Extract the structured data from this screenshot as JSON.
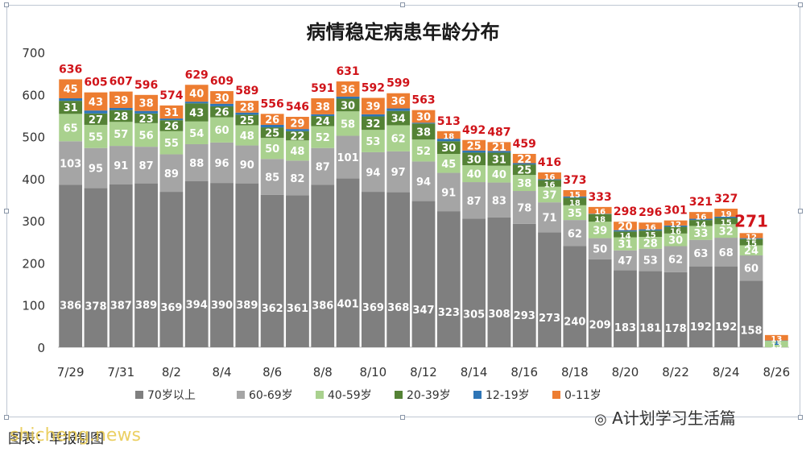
{
  "chart_data": {
    "type": "bar",
    "title": "病情稳定病患年龄分布",
    "y_ticks": [
      0,
      100,
      200,
      300,
      400,
      500,
      600,
      700
    ],
    "ylim": [
      0,
      700
    ],
    "x_tick_labels": [
      "7/29",
      "7/31",
      "8/2",
      "8/4",
      "8/6",
      "8/8",
      "8/10",
      "8/12",
      "8/14",
      "8/16",
      "8/18",
      "8/20",
      "8/22",
      "8/24",
      "8/26"
    ],
    "categories": [
      "7/29",
      "7/30",
      "7/31",
      "8/1",
      "8/2",
      "8/3",
      "8/4",
      "8/5",
      "8/6",
      "8/7",
      "8/8",
      "8/9",
      "8/10",
      "8/11",
      "8/12",
      "8/13",
      "8/14",
      "8/15",
      "8/16",
      "8/17",
      "8/18",
      "8/19",
      "8/20",
      "8/21",
      "8/22",
      "8/23",
      "8/24",
      "8/25",
      "8/26"
    ],
    "totals": [
      636,
      605,
      607,
      596,
      574,
      629,
      609,
      589,
      556,
      546,
      591,
      631,
      592,
      599,
      563,
      513,
      492,
      487,
      459,
      416,
      373,
      333,
      298,
      296,
      301,
      321,
      327,
      271,
      null
    ],
    "series": [
      {
        "name": "70岁以上",
        "color": "#7f7f7f",
        "values": [
          386,
          378,
          387,
          389,
          369,
          394,
          390,
          389,
          362,
          361,
          386,
          401,
          369,
          368,
          347,
          323,
          305,
          308,
          293,
          273,
          240,
          209,
          183,
          181,
          178,
          192,
          192,
          158,
          0
        ]
      },
      {
        "name": "60-69岁",
        "color": "#a5a5a5",
        "values": [
          103,
          95,
          91,
          87,
          89,
          88,
          96,
          90,
          85,
          82,
          87,
          101,
          94,
          97,
          94,
          91,
          87,
          83,
          78,
          71,
          62,
          50,
          47,
          53,
          62,
          63,
          68,
          60,
          0
        ]
      },
      {
        "name": "40-59岁",
        "color": "#a9d18e",
        "values": [
          65,
          55,
          57,
          56,
          55,
          54,
          60,
          48,
          50,
          48,
          52,
          58,
          53,
          62,
          52,
          45,
          40,
          40,
          38,
          37,
          35,
          39,
          31,
          28,
          30,
          33,
          32,
          24,
          15
        ]
      },
      {
        "name": "20-39岁",
        "color": "#548235",
        "values": [
          31,
          27,
          28,
          23,
          26,
          43,
          26,
          25,
          25,
          22,
          24,
          30,
          32,
          34,
          38,
          30,
          30,
          31,
          25,
          16,
          18,
          18,
          14,
          15,
          16,
          14,
          15,
          15,
          0
        ]
      },
      {
        "name": "12-19岁",
        "color": "#2e75b6",
        "values": [
          6,
          7,
          5,
          6,
          4,
          4,
          6,
          5,
          6,
          5,
          4,
          5,
          5,
          6,
          2,
          6,
          5,
          4,
          3,
          2,
          3,
          1,
          3,
          3,
          3,
          3,
          3,
          2,
          1
        ]
      },
      {
        "name": "0-11岁",
        "color": "#ed7d31",
        "values": [
          45,
          43,
          39,
          38,
          31,
          40,
          30,
          28,
          26,
          29,
          38,
          36,
          39,
          36,
          30,
          18,
          25,
          21,
          22,
          16,
          15,
          16,
          20,
          16,
          12,
          16,
          19,
          12,
          13
        ]
      }
    ],
    "point_labels": {
      "a70": [
        "386",
        "378",
        "387",
        "389",
        "369",
        "394",
        "390",
        "389",
        "362",
        "361",
        "386",
        "401",
        "369",
        "368",
        "347",
        "323",
        "305",
        "308",
        "293",
        "273",
        "240",
        "209",
        "183",
        "181",
        "178",
        "192",
        "192",
        "158",
        ""
      ],
      "a60": [
        "103",
        "95",
        "91",
        "87",
        "89",
        "88",
        "96",
        "90",
        "85",
        "82",
        "87",
        "101",
        "94",
        "97",
        "94",
        "91",
        "87",
        "83",
        "78",
        "71",
        "62",
        "50",
        "47",
        "53",
        "62",
        "63",
        "68",
        "60",
        ""
      ],
      "a40": [
        "65",
        "55",
        "57",
        "56",
        "55",
        "54",
        "60",
        "48",
        "50",
        "48",
        "52",
        "58",
        "53",
        "62",
        "52",
        "45",
        "40",
        "40",
        "38",
        "37",
        "35",
        "39",
        "31",
        "28",
        "30",
        "33",
        "32",
        "24",
        "15"
      ],
      "a20": [
        "31",
        "27",
        "28",
        "23",
        "26",
        "43",
        "26",
        "25",
        "25",
        "22",
        "24",
        "30",
        "32",
        "34",
        "38",
        "30",
        "30",
        "31",
        "25",
        "16",
        "18",
        "18",
        "14",
        "15",
        "16",
        "14",
        "15",
        "15",
        ""
      ],
      "a12": [
        "",
        "",
        "",
        "",
        "",
        "",
        "",
        "",
        "",
        "",
        "",
        "",
        "",
        "",
        "",
        "",
        "",
        "",
        "",
        "",
        "",
        "",
        "",
        "",
        "",
        "",
        "",
        "",
        "1"
      ],
      "a0": [
        "45",
        "43",
        "39",
        "38",
        "31",
        "40",
        "30",
        "28",
        "26",
        "29",
        "38",
        "36",
        "39",
        "36",
        "30",
        "18",
        "25",
        "21",
        "22",
        "16",
        "15",
        "16",
        "20",
        "16",
        "12",
        "16",
        "19",
        "12",
        "13"
      ]
    },
    "legend_position": "bottom",
    "grid": false
  },
  "footer": {
    "source": "图表：早报制图",
    "watermark_left": "shicheng.news",
    "watermark_right": "A计划学习生活篇"
  }
}
